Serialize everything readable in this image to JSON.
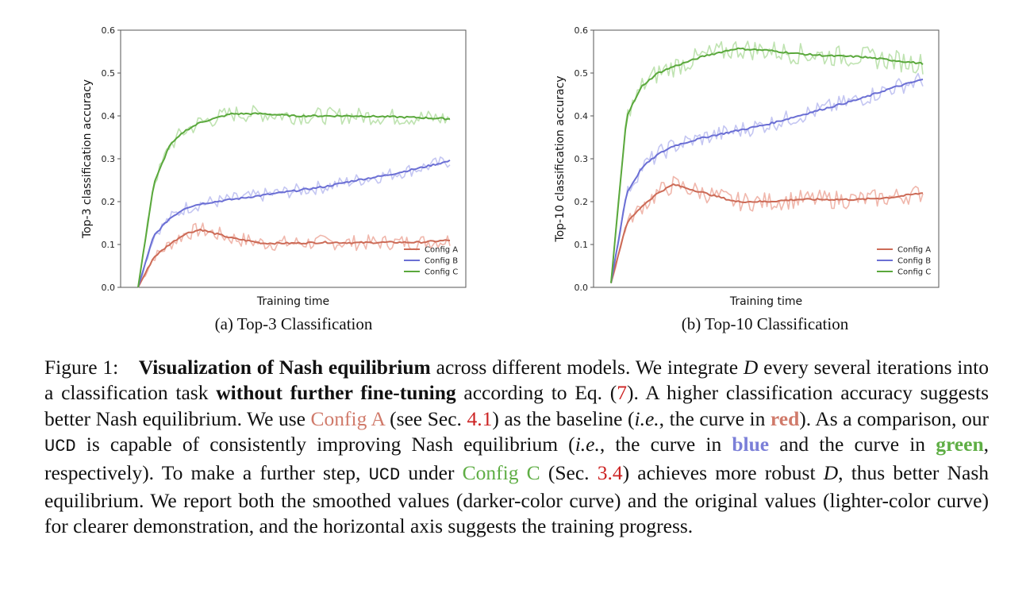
{
  "colors": {
    "config_a": "#cc6b57",
    "config_b": "#6b6fd4",
    "config_c": "#5aa83c",
    "config_a_light": "#f0b7ac",
    "config_b_light": "#c4c6f2",
    "config_c_light": "#bfe3b1",
    "ref": "#cc2222"
  },
  "chart_data": [
    {
      "type": "line",
      "xlabel": "Training time",
      "ylabel": "Top-3 classification accuracy",
      "ylim": [
        0.0,
        0.6
      ],
      "yticks": [
        "0.0",
        "0.1",
        "0.2",
        "0.3",
        "0.4",
        "0.5",
        "0.6"
      ],
      "legend_position": "bottom-right",
      "x": [
        0,
        0.05,
        0.1,
        0.15,
        0.2,
        0.3,
        0.4,
        0.5,
        0.6,
        0.7,
        0.8,
        0.9,
        1.0
      ],
      "series": [
        {
          "name": "Config A",
          "values": [
            0.0,
            0.07,
            0.1,
            0.125,
            0.135,
            0.115,
            0.103,
            0.103,
            0.105,
            0.104,
            0.105,
            0.105,
            0.11
          ]
        },
        {
          "name": "Config B",
          "values": [
            0.0,
            0.12,
            0.16,
            0.185,
            0.195,
            0.205,
            0.215,
            0.225,
            0.235,
            0.25,
            0.262,
            0.278,
            0.295
          ]
        },
        {
          "name": "Config C",
          "values": [
            0.0,
            0.24,
            0.33,
            0.365,
            0.385,
            0.405,
            0.405,
            0.4,
            0.4,
            0.4,
            0.398,
            0.396,
            0.393
          ]
        }
      ]
    },
    {
      "type": "line",
      "xlabel": "Training time",
      "ylabel": "Top-10 classification accuracy",
      "ylim": [
        0.0,
        0.6
      ],
      "yticks": [
        "0.0",
        "0.1",
        "0.2",
        "0.3",
        "0.4",
        "0.5",
        "0.6"
      ],
      "legend_position": "bottom-right",
      "x": [
        0,
        0.05,
        0.1,
        0.15,
        0.2,
        0.3,
        0.4,
        0.5,
        0.6,
        0.7,
        0.8,
        0.9,
        1.0
      ],
      "series": [
        {
          "name": "Config A",
          "values": [
            0.01,
            0.15,
            0.19,
            0.22,
            0.24,
            0.22,
            0.2,
            0.2,
            0.205,
            0.205,
            0.205,
            0.21,
            0.22
          ]
        },
        {
          "name": "Config B",
          "values": [
            0.01,
            0.22,
            0.28,
            0.31,
            0.33,
            0.35,
            0.365,
            0.38,
            0.4,
            0.42,
            0.44,
            0.465,
            0.485
          ]
        },
        {
          "name": "Config C",
          "values": [
            0.01,
            0.4,
            0.47,
            0.5,
            0.515,
            0.54,
            0.557,
            0.553,
            0.545,
            0.54,
            0.538,
            0.53,
            0.522
          ]
        }
      ]
    }
  ],
  "subcaptions": [
    "(a) Top-3 Classification",
    "(b) Top-10 Classification"
  ],
  "caption": {
    "p1": "Figure 1: ",
    "p2": "Visualization of Nash equilibrium",
    "p3": " across different models. We integrate ",
    "p4": "D",
    "p5": " every several iterations into a classification task ",
    "p6": "without further fine-tuning",
    "p7": " according to Eq. (",
    "p8": "7",
    "p9": "). A higher classification accuracy suggests better Nash equilibrium. We use ",
    "p10": "Config A",
    "p11": " (see Sec. ",
    "p12": "4.1",
    "p13": ") as the baseline (",
    "p14": "i.e.",
    "p15": ", the curve in ",
    "p16": "red",
    "p17": "). As a comparison, our ",
    "p18": "UCD",
    "p19": " is capable of consistently improving Nash equilibrium (",
    "p20": "i.e.",
    "p21": ", the curve in ",
    "p22": "blue",
    "p23": " and the curve in ",
    "p24": "green",
    "p25": ", respectively). To make a further step, ",
    "p26": "UCD",
    "p27": " under ",
    "p28": "Config C",
    "p29": " (Sec. ",
    "p30": "3.4",
    "p31": ") achieves more robust ",
    "p32": "D",
    "p33": ", thus better Nash equilibrium. We report both the smoothed values (darker-color curve) and the original values (lighter-color curve) for clearer demonstration, and the horizontal axis suggests the training progress."
  }
}
